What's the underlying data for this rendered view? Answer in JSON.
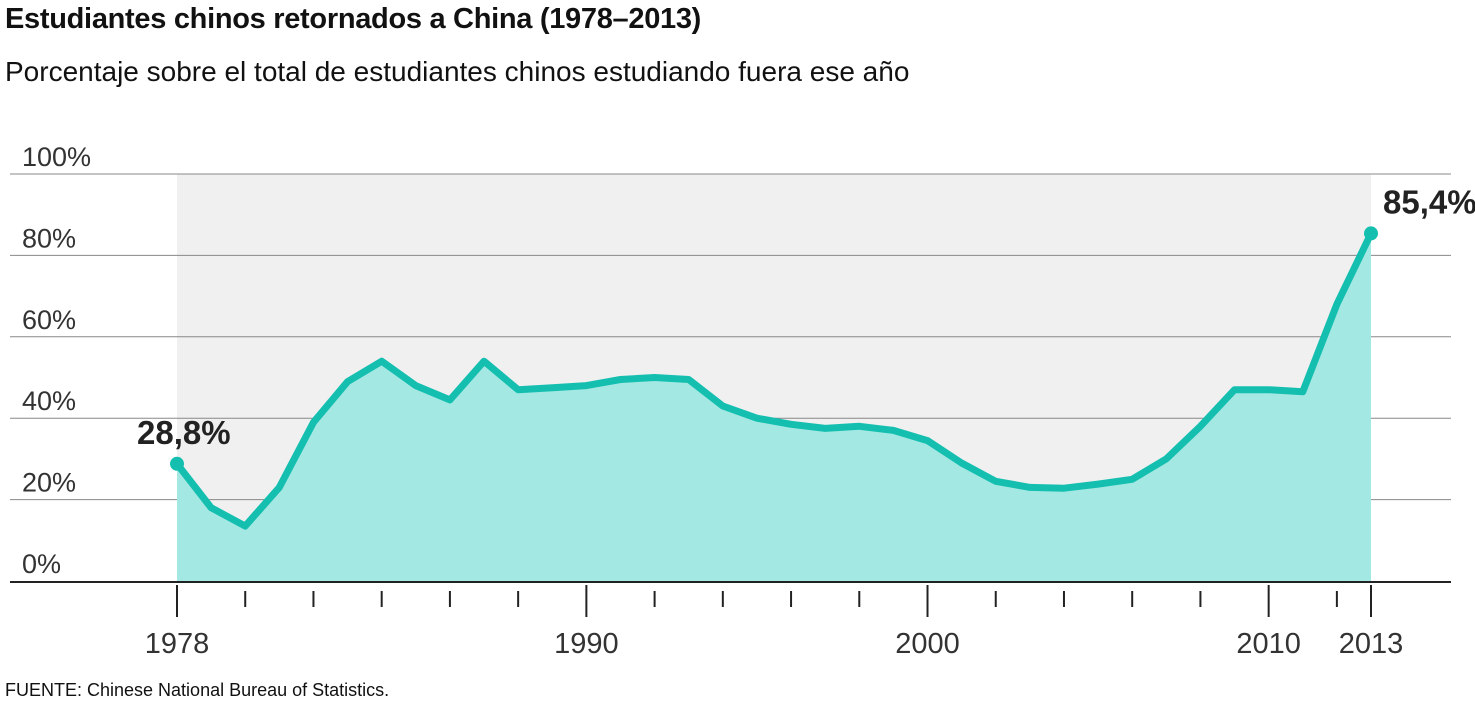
{
  "header": {
    "title": "Estudiantes chinos retornados a China (1978–2013)",
    "subtitle": "Porcentaje sobre el total de estudiantes chinos estudiando fuera ese año"
  },
  "footer": {
    "source": "FUENTE: Chinese National Bureau of Statistics."
  },
  "colors": {
    "line": "#14bfb0",
    "area": "#a3e8e2",
    "plot_background": "#f0f0f0",
    "grid": "#888888",
    "axis": "#222222"
  },
  "chart_data": {
    "type": "area",
    "title": "Estudiantes chinos retornados a China (1978–2013)",
    "subtitle": "Porcentaje sobre el total de estudiantes chinos estudiando fuera ese año",
    "xlabel": "",
    "ylabel": "",
    "xlim": [
      1978,
      2013
    ],
    "ylim": [
      0,
      100
    ],
    "grid": true,
    "y_ticks": [
      {
        "value": 0,
        "label": "0%"
      },
      {
        "value": 20,
        "label": "20%"
      },
      {
        "value": 40,
        "label": "40%"
      },
      {
        "value": 60,
        "label": "60%"
      },
      {
        "value": 80,
        "label": "80%"
      },
      {
        "value": 100,
        "label": "100%"
      }
    ],
    "x_ticks": [
      {
        "value": 1978,
        "label": "1978"
      },
      {
        "value": 1990,
        "label": "1990"
      },
      {
        "value": 2000,
        "label": "2000"
      },
      {
        "value": 2010,
        "label": "2010"
      },
      {
        "value": 2013,
        "label": "2013"
      }
    ],
    "x": [
      1978,
      1979,
      1980,
      1981,
      1982,
      1983,
      1984,
      1985,
      1986,
      1987,
      1988,
      1989,
      1990,
      1991,
      1992,
      1993,
      1994,
      1995,
      1996,
      1997,
      1998,
      1999,
      2000,
      2001,
      2002,
      2003,
      2004,
      2005,
      2006,
      2007,
      2008,
      2009,
      2010,
      2011,
      2012,
      2013
    ],
    "series": [
      {
        "values": [
          28.8,
          18,
          13.5,
          23,
          39,
          49,
          54,
          48,
          44.5,
          54,
          47,
          47.5,
          48,
          49.5,
          50,
          49.5,
          43,
          40,
          38.5,
          37.5,
          38,
          37,
          34.5,
          29,
          24.5,
          23,
          22.8,
          23.8,
          25,
          30,
          38,
          47,
          47,
          46.5,
          68,
          85.4
        ]
      }
    ],
    "annotations": [
      {
        "x": 1978,
        "y": 28.8,
        "label": "28,8%"
      },
      {
        "x": 2013,
        "y": 85.4,
        "label": "85,4%"
      }
    ]
  }
}
